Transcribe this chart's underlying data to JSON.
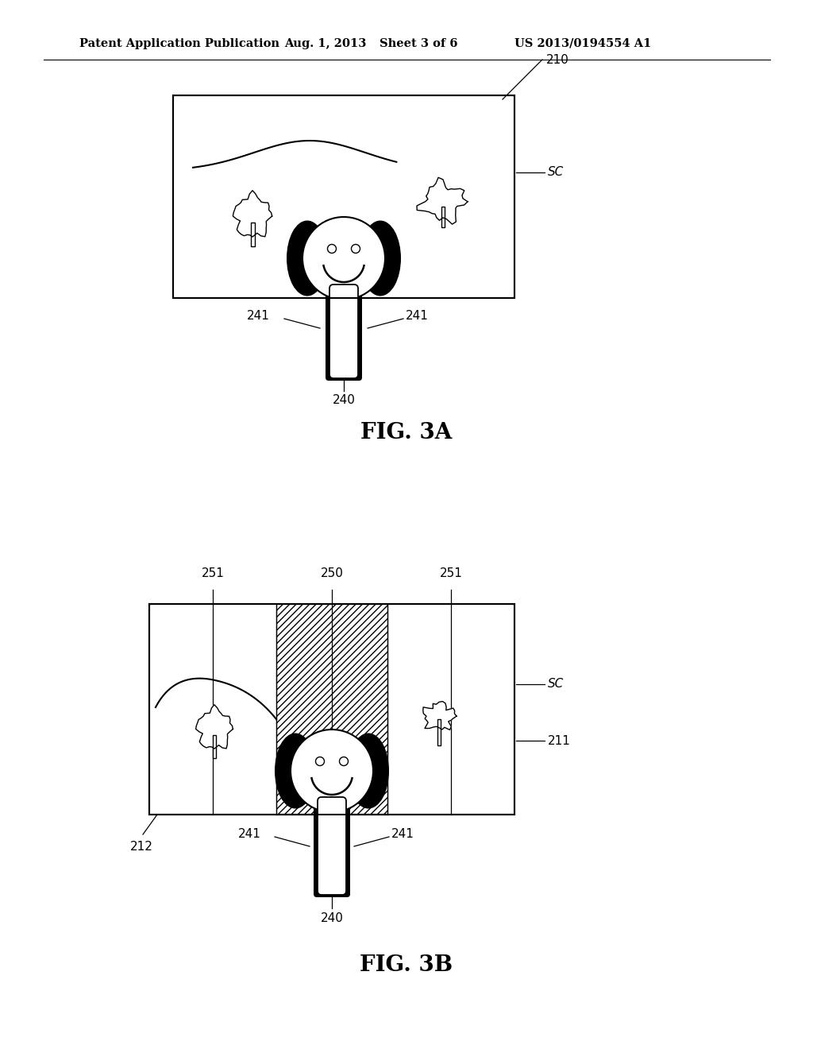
{
  "bg_color": "#ffffff",
  "header_text": "Patent Application Publication",
  "header_date": "Aug. 1, 2013",
  "header_sheet": "Sheet 3 of 6",
  "header_patent": "US 2013/0194554 A1",
  "fig3a_label": "FIG. 3A",
  "fig3b_label": "FIG. 3B",
  "label_210": "210",
  "label_SC_a": "SC",
  "label_241_left_a": "241",
  "label_241_right_a": "241",
  "label_240_a": "240",
  "label_251_left": "251",
  "label_250": "250",
  "label_251_right": "251",
  "label_SC_b": "SC",
  "label_211": "211",
  "label_212": "212",
  "label_241_left_b": "241",
  "label_241_right_b": "241",
  "label_240_b": "240"
}
